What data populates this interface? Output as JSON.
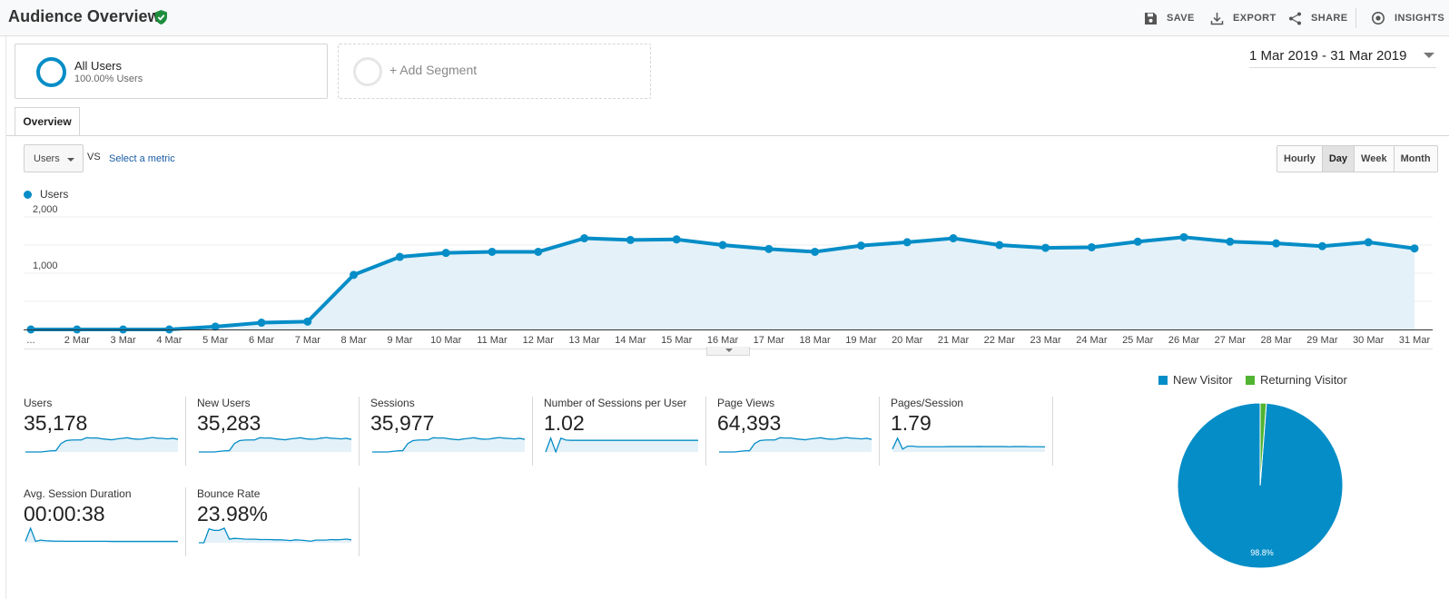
{
  "header": {
    "title": "Audience Overview",
    "actions": {
      "save": "SAVE",
      "export": "EXPORT",
      "share": "SHARE",
      "insights": "INSIGHTS"
    }
  },
  "segments": {
    "active": {
      "name": "All Users",
      "sub": "100.00% Users"
    },
    "add_label": "+ Add Segment"
  },
  "date_range": "1 Mar 2019 - 31 Mar 2019",
  "tabs": {
    "overview": "Overview"
  },
  "controls": {
    "metric": "Users",
    "vs": "VS",
    "select_metric": "Select a metric",
    "granularity": [
      "Hourly",
      "Day",
      "Week",
      "Month"
    ],
    "active_granularity": "Day"
  },
  "chart_data": {
    "type": "area",
    "series": [
      {
        "name": "Users",
        "values": [
          0,
          0,
          0,
          0,
          50,
          120,
          140,
          970,
          1290,
          1360,
          1380,
          1380,
          1620,
          1590,
          1600,
          1500,
          1430,
          1380,
          1490,
          1550,
          1620,
          1500,
          1450,
          1460,
          1560,
          1640,
          1560,
          1530,
          1480,
          1550,
          1440
        ]
      }
    ],
    "categories": [
      "...",
      "2 Mar",
      "3 Mar",
      "4 Mar",
      "5 Mar",
      "6 Mar",
      "7 Mar",
      "8 Mar",
      "9 Mar",
      "10 Mar",
      "11 Mar",
      "12 Mar",
      "13 Mar",
      "14 Mar",
      "15 Mar",
      "16 Mar",
      "17 Mar",
      "18 Mar",
      "19 Mar",
      "20 Mar",
      "21 Mar",
      "22 Mar",
      "23 Mar",
      "24 Mar",
      "25 Mar",
      "26 Mar",
      "27 Mar",
      "28 Mar",
      "29 Mar",
      "30 Mar",
      "31 Mar"
    ],
    "y_ticks": [
      "2,000",
      "1,000"
    ],
    "ylim": [
      0,
      2000
    ],
    "color": "#058dc7",
    "fill": "#e4f1f8"
  },
  "metrics": [
    {
      "label": "Users",
      "value": "35,178",
      "spark": [
        0,
        0,
        0,
        0,
        4,
        8,
        9,
        58,
        78,
        82,
        83,
        83,
        98,
        96,
        97,
        91,
        87,
        84,
        90,
        94,
        98,
        91,
        88,
        89,
        95,
        99,
        95,
        93,
        90,
        94,
        87
      ]
    },
    {
      "label": "New Users",
      "value": "35,283",
      "spark": [
        0,
        0,
        0,
        0,
        4,
        8,
        9,
        58,
        78,
        82,
        83,
        83,
        98,
        96,
        97,
        91,
        87,
        84,
        90,
        94,
        98,
        91,
        88,
        89,
        95,
        99,
        95,
        93,
        90,
        94,
        87
      ]
    },
    {
      "label": "Sessions",
      "value": "35,977",
      "spark": [
        0,
        0,
        0,
        0,
        4,
        8,
        9,
        58,
        78,
        82,
        83,
        83,
        98,
        96,
        97,
        91,
        87,
        84,
        90,
        94,
        98,
        91,
        88,
        89,
        95,
        99,
        95,
        93,
        90,
        94,
        87
      ]
    },
    {
      "label": "Number of Sessions per User",
      "value": "1.02",
      "spark": [
        0,
        95,
        0,
        95,
        82,
        80,
        80,
        80,
        80,
        80,
        80,
        80,
        80,
        80,
        80,
        80,
        80,
        80,
        80,
        80,
        80,
        80,
        80,
        80,
        80,
        80,
        80,
        80,
        80,
        80,
        80
      ]
    },
    {
      "label": "Page Views",
      "value": "64,393",
      "spark": [
        0,
        0,
        0,
        0,
        4,
        8,
        9,
        58,
        78,
        82,
        83,
        83,
        98,
        96,
        97,
        91,
        87,
        84,
        90,
        94,
        98,
        91,
        88,
        89,
        95,
        99,
        95,
        93,
        90,
        94,
        87
      ]
    },
    {
      "label": "Pages/Session",
      "value": "1.79",
      "spark": [
        20,
        95,
        20,
        40,
        40,
        36,
        36,
        36,
        36,
        36,
        36,
        37,
        37,
        37,
        37,
        37,
        37,
        38,
        37,
        37,
        37,
        37,
        37,
        36,
        37,
        37,
        37,
        36,
        36,
        36,
        35
      ]
    },
    {
      "label": "Avg. Session Duration",
      "value": "00:00:38",
      "spark": [
        10,
        100,
        10,
        18,
        14,
        12,
        11,
        11,
        10,
        10,
        10,
        10,
        10,
        10,
        10,
        10,
        10,
        9,
        9,
        9,
        9,
        9,
        9,
        9,
        9,
        9,
        9,
        9,
        9,
        9,
        9
      ]
    },
    {
      "label": "Bounce Rate",
      "value": "23.98%",
      "spark": [
        0,
        0,
        95,
        85,
        85,
        100,
        25,
        30,
        28,
        25,
        24,
        24,
        22,
        22,
        22,
        20,
        20,
        18,
        15,
        20,
        18,
        15,
        10,
        18,
        18,
        18,
        22,
        20,
        22,
        25,
        20
      ]
    }
  ],
  "pie": {
    "legend": [
      {
        "label": "New Visitor",
        "color": "#058dc7"
      },
      {
        "label": "Returning Visitor",
        "color": "#50b432"
      }
    ],
    "new_visitor_pct": 98.8,
    "returning_visitor_pct": 1.2,
    "label": "98.8%"
  }
}
